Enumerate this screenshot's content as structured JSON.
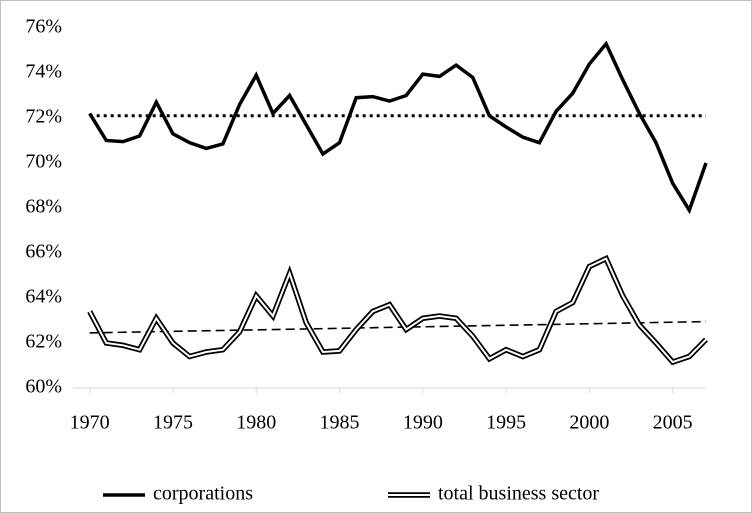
{
  "chart_data": {
    "type": "line",
    "x": [
      1970,
      1971,
      1972,
      1973,
      1974,
      1975,
      1976,
      1977,
      1978,
      1979,
      1980,
      1981,
      1982,
      1983,
      1984,
      1985,
      1986,
      1987,
      1988,
      1989,
      1990,
      1991,
      1992,
      1993,
      1994,
      1995,
      1996,
      1997,
      1998,
      1999,
      2000,
      2001,
      2002,
      2003,
      2004,
      2005,
      2006,
      2007
    ],
    "series": [
      {
        "name": "corporations",
        "color": "#000000",
        "style": "solid",
        "values": [
          72.2,
          71.0,
          70.95,
          71.2,
          72.7,
          71.3,
          70.9,
          70.65,
          70.85,
          72.6,
          73.9,
          72.2,
          73.0,
          71.7,
          70.4,
          70.9,
          72.9,
          72.95,
          72.75,
          73.0,
          73.95,
          73.85,
          74.35,
          73.8,
          72.1,
          71.6,
          71.15,
          70.9,
          72.3,
          73.1,
          74.4,
          75.3,
          73.7,
          72.2,
          70.9,
          69.1,
          67.9,
          70.0
        ]
      },
      {
        "name": "total business sector",
        "color": "#000000",
        "style": "double",
        "values": [
          63.4,
          62.0,
          61.9,
          61.7,
          63.1,
          62.0,
          61.4,
          61.6,
          61.7,
          62.5,
          64.1,
          63.2,
          65.1,
          62.9,
          61.6,
          61.65,
          62.6,
          63.4,
          63.7,
          62.6,
          63.1,
          63.2,
          63.1,
          62.3,
          61.3,
          61.7,
          61.4,
          61.7,
          63.4,
          63.8,
          65.4,
          65.75,
          64.1,
          62.8,
          62.0,
          61.15,
          61.4,
          62.15
        ]
      }
    ],
    "reference_lines": [
      {
        "color": "#000000",
        "style": "dotted",
        "x": [
          1970,
          2007
        ],
        "values": [
          72.1,
          72.1
        ]
      },
      {
        "color": "#000000",
        "style": "dashed",
        "x": [
          1970,
          2007
        ],
        "values": [
          62.45,
          62.95
        ]
      }
    ],
    "xlim": [
      1969,
      2007
    ],
    "xticks": [
      1970,
      1975,
      1980,
      1985,
      1990,
      1995,
      2000,
      2005
    ],
    "ylim": [
      60,
      76
    ],
    "yticks": [
      {
        "value": 60,
        "label": "60%"
      },
      {
        "value": 62,
        "label": "62%"
      },
      {
        "value": 64,
        "label": "64%"
      },
      {
        "value": 66,
        "label": "66%"
      },
      {
        "value": 68,
        "label": "68%"
      },
      {
        "value": 70,
        "label": "70%"
      },
      {
        "value": 72,
        "label": "72%"
      },
      {
        "value": 74,
        "label": "74%"
      },
      {
        "value": 76,
        "label": "76%"
      }
    ],
    "grid": false,
    "legend": "bottom"
  }
}
